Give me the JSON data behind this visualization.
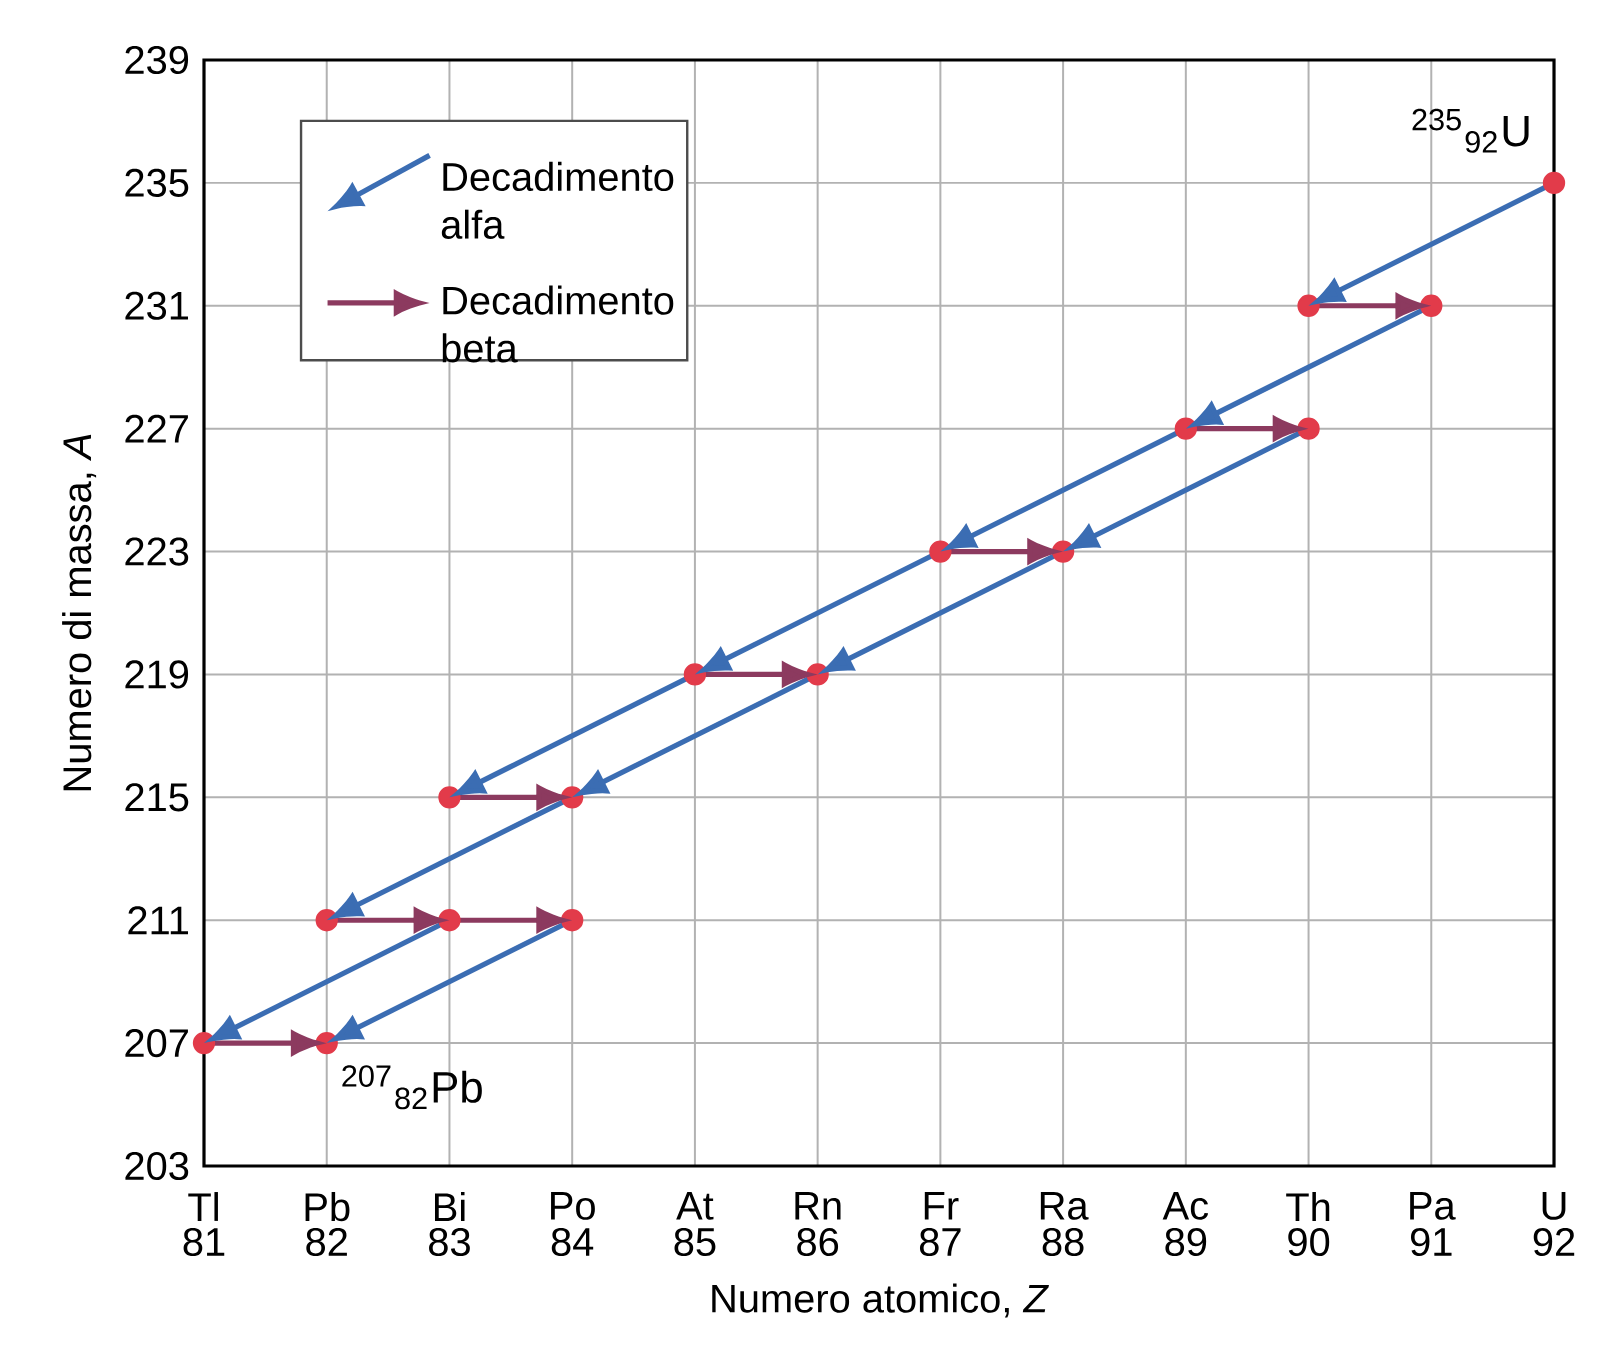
{
  "chart_data": {
    "type": "line",
    "xlabel": "Numero atomico, *Z*",
    "ylabel": "Numero di massa, *A*",
    "xlim": [
      81,
      92
    ],
    "xticks": [
      81,
      82,
      83,
      84,
      85,
      86,
      87,
      88,
      89,
      90,
      91,
      92
    ],
    "ylim": [
      203,
      239
    ],
    "yticks": [
      203,
      207,
      211,
      215,
      219,
      223,
      227,
      231,
      235,
      239
    ],
    "grid": true,
    "legend": "top left",
    "marker": "none",
    "line_style": "solid",
    "series": [
      {
        "name": "Decadimento alfa",
        "color": "#3b6db3",
        "x": [
          92,
          90
        ],
        "values": [
          235,
          231
        ]
      },
      {
        "color": "#3b6db3",
        "x": [
          91,
          89
        ],
        "values": [
          231,
          227
        ]
      },
      {
        "color": "#3b6db3",
        "x": [
          90,
          88
        ],
        "values": [
          227,
          223
        ]
      },
      {
        "color": "#3b6db3",
        "x": [
          89,
          87
        ],
        "values": [
          227,
          223
        ]
      },
      {
        "color": "#3b6db3",
        "x": [
          88,
          86
        ],
        "values": [
          223,
          219
        ]
      },
      {
        "color": "#3b6db3",
        "x": [
          87,
          85
        ],
        "values": [
          223,
          219
        ]
      },
      {
        "color": "#3b6db3",
        "x": [
          86,
          84
        ],
        "values": [
          219,
          215
        ]
      },
      {
        "color": "#3b6db3",
        "x": [
          85,
          83
        ],
        "values": [
          219,
          215
        ]
      },
      {
        "color": "#3b6db3",
        "x": [
          84,
          82
        ],
        "values": [
          215,
          211
        ]
      },
      {
        "color": "#3b6db3",
        "x": [
          83,
          81
        ],
        "values": [
          211,
          207
        ]
      },
      {
        "color": "#3b6db3",
        "x": [
          84,
          82
        ],
        "values": [
          211,
          207
        ]
      },
      {
        "name": "Decadimento beta",
        "color": "#8c3a5f",
        "x": [
          90,
          91
        ],
        "values": [
          231,
          231
        ]
      },
      {
        "color": "#8c3a5f",
        "x": [
          89,
          90
        ],
        "values": [
          227,
          227
        ]
      },
      {
        "color": "#8c3a5f",
        "x": [
          87,
          88
        ],
        "values": [
          223,
          223
        ]
      },
      {
        "color": "#8c3a5f",
        "x": [
          85,
          86
        ],
        "values": [
          219,
          219
        ]
      },
      {
        "color": "#8c3a5f",
        "x": [
          83,
          84
        ],
        "values": [
          215,
          215
        ]
      },
      {
        "color": "#8c3a5f",
        "x": [
          82,
          83
        ],
        "values": [
          211,
          211
        ]
      },
      {
        "color": "#8c3a5f",
        "x": [
          83,
          84
        ],
        "values": [
          211,
          211
        ]
      },
      {
        "color": "#8c3a5f",
        "x": [
          81,
          82
        ],
        "values": [
          207,
          207
        ]
      },
      {
        "type": "scatter",
        "color": "#e23b4a",
        "marker": "circle",
        "x": [
          92,
          90,
          91,
          89,
          90,
          87,
          88,
          85,
          86,
          83,
          84,
          82,
          83,
          84,
          81,
          82
        ],
        "values": [
          235,
          231,
          231,
          227,
          227,
          223,
          223,
          219,
          219,
          215,
          215,
          211,
          211,
          211,
          207,
          207
        ]
      }
    ],
    "annotations": [
      {
        "text": "$^{235}$$_{92}$U",
        "x": 92,
        "y": 235
      },
      {
        "text": "$^{207}$$_{82}$Pb",
        "x": 82,
        "y": 207
      },
      "Tl",
      "Pb",
      "Bi",
      "Po",
      "At",
      "Rn",
      "Fr",
      "Ra",
      "Ac",
      "Th",
      "Pa",
      "U"
    ]
  }
}
